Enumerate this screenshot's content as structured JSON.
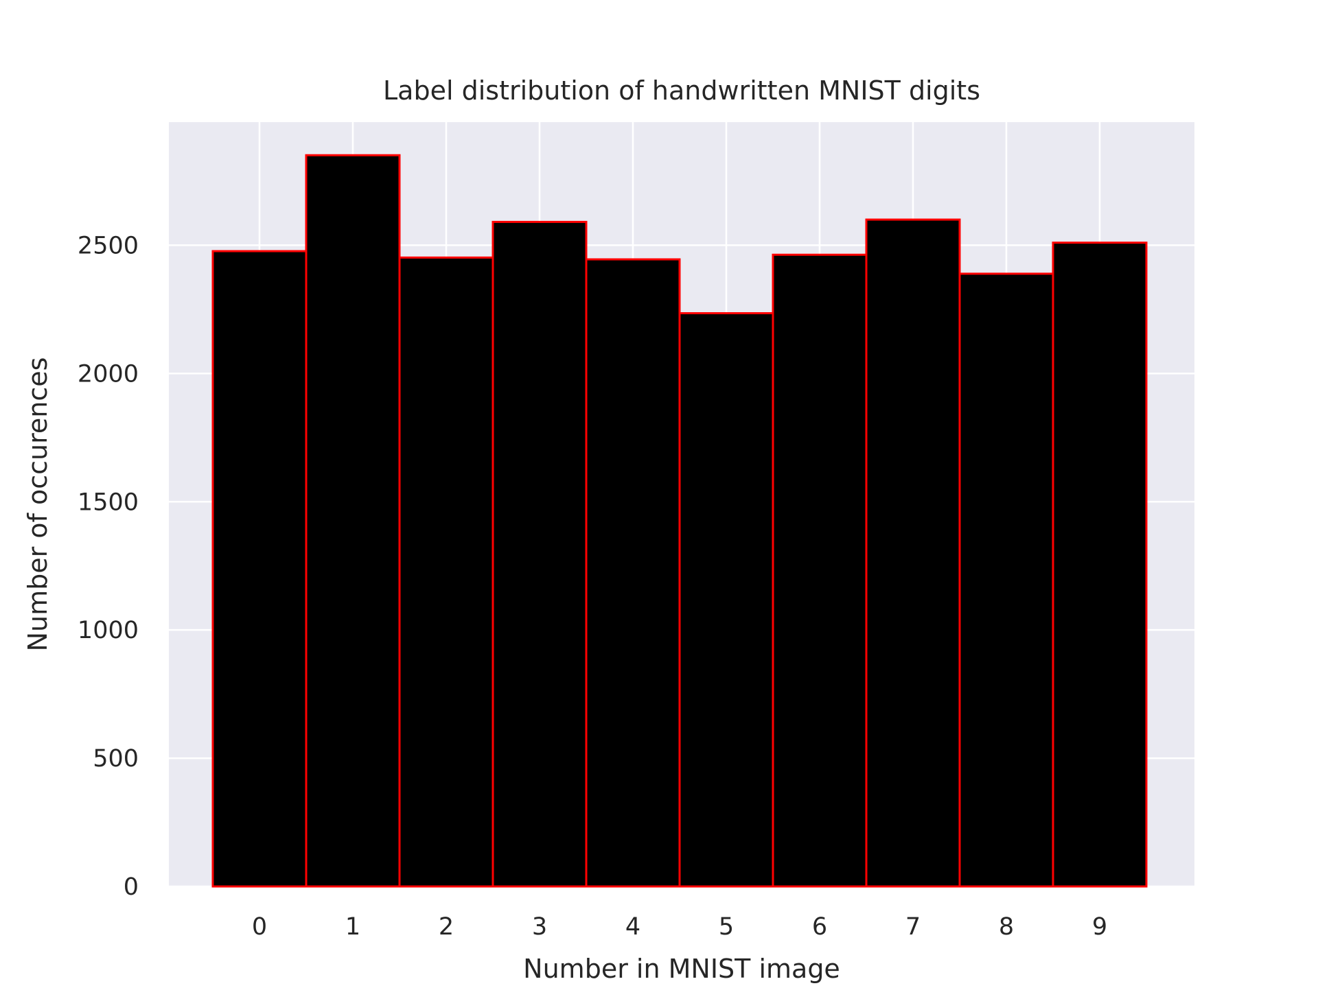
{
  "chart_data": {
    "type": "bar",
    "title": "Label distribution of handwritten MNIST digits",
    "xlabel": "Number in MNIST image",
    "ylabel": "Number of occurences",
    "categories": [
      "0",
      "1",
      "2",
      "3",
      "4",
      "5",
      "6",
      "7",
      "8",
      "9"
    ],
    "values": [
      2477,
      2851,
      2452,
      2591,
      2445,
      2235,
      2463,
      2600,
      2389,
      2510
    ],
    "yticks": [
      "0",
      "500",
      "1000",
      "1500",
      "2000",
      "2500"
    ],
    "ylim": [
      0,
      2980
    ],
    "grid": true,
    "colors": {
      "background": "#eaeaf2",
      "grid": "#ffffff",
      "bar_fill": "#000000",
      "bar_edge": "#ff0000",
      "text": "#262626"
    }
  }
}
